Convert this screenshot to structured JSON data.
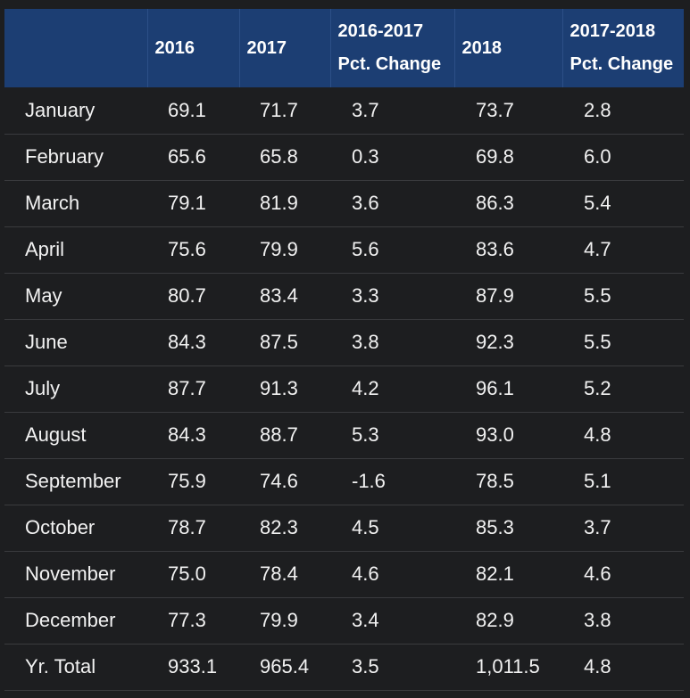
{
  "table": {
    "headers": {
      "month": "",
      "y2016": "2016",
      "y2017": "2017",
      "pct_2016_2017": [
        "2016-2017",
        "Pct. Change"
      ],
      "y2018": "2018",
      "pct_2017_2018": [
        "2017-2018",
        "Pct. Change"
      ]
    },
    "rows": [
      {
        "month": "January",
        "y2016": "69.1",
        "y2017": "71.7",
        "pct1": "3.7",
        "y2018": "73.7",
        "pct2": "2.8"
      },
      {
        "month": "February",
        "y2016": "65.6",
        "y2017": "65.8",
        "pct1": "0.3",
        "y2018": "69.8",
        "pct2": "6.0"
      },
      {
        "month": "March",
        "y2016": "79.1",
        "y2017": "81.9",
        "pct1": "3.6",
        "y2018": "86.3",
        "pct2": "5.4"
      },
      {
        "month": "April",
        "y2016": "75.6",
        "y2017": "79.9",
        "pct1": "5.6",
        "y2018": "83.6",
        "pct2": "4.7"
      },
      {
        "month": "May",
        "y2016": "80.7",
        "y2017": "83.4",
        "pct1": "3.3",
        "y2018": "87.9",
        "pct2": "5.5"
      },
      {
        "month": "June",
        "y2016": "84.3",
        "y2017": "87.5",
        "pct1": "3.8",
        "y2018": "92.3",
        "pct2": "5.5"
      },
      {
        "month": "July",
        "y2016": "87.7",
        "y2017": "91.3",
        "pct1": "4.2",
        "y2018": "96.1",
        "pct2": "5.2"
      },
      {
        "month": "August",
        "y2016": "84.3",
        "y2017": "88.7",
        "pct1": "5.3",
        "y2018": "93.0",
        "pct2": "4.8"
      },
      {
        "month": "September",
        "y2016": "75.9",
        "y2017": "74.6",
        "pct1": "-1.6",
        "y2018": "78.5",
        "pct2": "5.1"
      },
      {
        "month": "October",
        "y2016": "78.7",
        "y2017": "82.3",
        "pct1": "4.5",
        "y2018": "85.3",
        "pct2": "3.7"
      },
      {
        "month": "November",
        "y2016": "75.0",
        "y2017": "78.4",
        "pct1": "4.6",
        "y2018": "82.1",
        "pct2": "4.6"
      },
      {
        "month": "December",
        "y2016": "77.3",
        "y2017": "79.9",
        "pct1": "3.4",
        "y2018": "82.9",
        "pct2": "3.8"
      },
      {
        "month": "Yr. Total",
        "y2016": "933.1",
        "y2017": "965.4",
        "pct1": "3.5",
        "y2018": "1,011.5",
        "pct2": "4.8"
      }
    ]
  },
  "colors": {
    "header_background": "#1c3e73",
    "body_background": "#1d1e20",
    "text": "#f2f2f2",
    "row_divider": "#3a3b3e"
  }
}
